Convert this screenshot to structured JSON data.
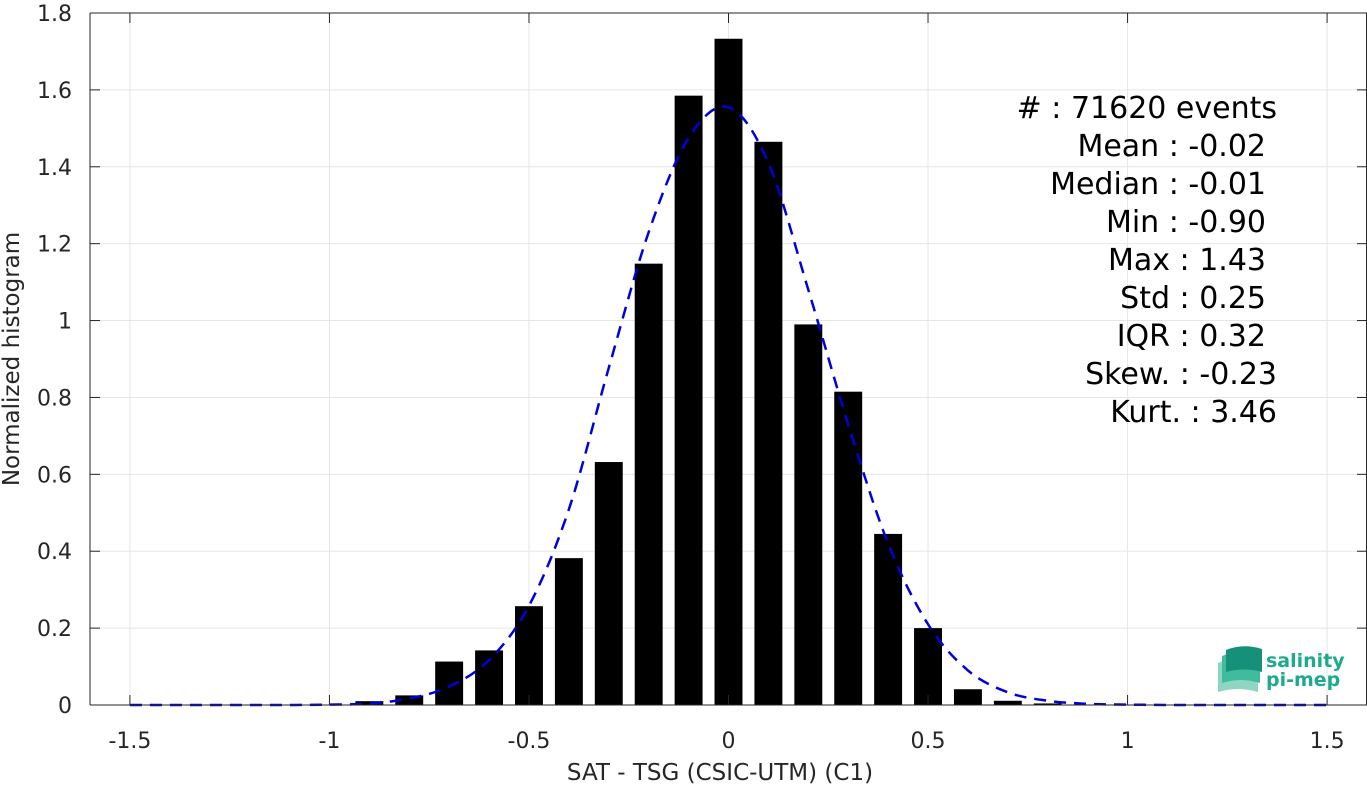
{
  "chart_data": {
    "type": "bar",
    "xlabel": "SAT - TSG (CSIC-UTM) (C1)",
    "ylabel": "Normalized histogram",
    "xlim": [
      -1.6,
      1.6
    ],
    "ylim": [
      0,
      1.8
    ],
    "xticks": [
      -1.5,
      -1,
      -0.5,
      0,
      0.5,
      1,
      1.5
    ],
    "xtick_labels": [
      "-1.5",
      "-1",
      "-0.5",
      "0",
      "0.5",
      "1",
      "1.5"
    ],
    "yticks": [
      0,
      0.2,
      0.4,
      0.6,
      0.8,
      1,
      1.2,
      1.4,
      1.6,
      1.8
    ],
    "ytick_labels": [
      "0",
      "0.2",
      "0.4",
      "0.6",
      "0.8",
      "1",
      "1.2",
      "1.4",
      "1.6",
      "1.8"
    ],
    "grid": true,
    "bar_color": "#000000",
    "bar_width": 0.07,
    "bars": {
      "x": [
        -0.9,
        -0.8,
        -0.7,
        -0.6,
        -0.5,
        -0.4,
        -0.3,
        -0.2,
        -0.1,
        0.0,
        0.1,
        0.2,
        0.3,
        0.4,
        0.5,
        0.6,
        0.7,
        0.8
      ],
      "values": [
        0.01,
        0.025,
        0.113,
        0.142,
        0.257,
        0.382,
        0.632,
        1.148,
        1.585,
        1.733,
        1.465,
        0.99,
        0.815,
        0.445,
        0.2,
        0.041,
        0.011,
        0.004
      ]
    },
    "fit_curve": {
      "style": "dashed",
      "color": "#0000dd",
      "x": [
        -1.5,
        -1.4,
        -1.3,
        -1.2,
        -1.1,
        -1.0,
        -0.9,
        -0.8,
        -0.7,
        -0.6,
        -0.5,
        -0.4,
        -0.3,
        -0.2,
        -0.1,
        0.0,
        0.1,
        0.2,
        0.3,
        0.4,
        0.5,
        0.6,
        0.7,
        0.8,
        0.9,
        1.0,
        1.1,
        1.2,
        1.3,
        1.4,
        1.5
      ],
      "y": [
        0.0,
        0.0,
        0.0,
        0.0,
        0.0,
        0.001,
        0.004,
        0.017,
        0.048,
        0.117,
        0.258,
        0.509,
        0.877,
        1.23,
        1.475,
        1.555,
        1.41,
        1.08,
        0.73,
        0.42,
        0.21,
        0.09,
        0.033,
        0.011,
        0.003,
        0.001,
        0.0,
        0.0,
        0.0,
        0.0,
        0.0
      ]
    },
    "stats": [
      "#  : 71620 events",
      "Mean : -0.02",
      "Median : -0.01",
      "Min : -0.90",
      "Max : 1.43",
      "Std : 0.25",
      "IQR : 0.32",
      "Skew. : -0.23",
      "Kurt. : 3.46"
    ]
  },
  "logo": {
    "line1": "salinity",
    "line2": "pi-mep",
    "color": "#1faa8f"
  }
}
